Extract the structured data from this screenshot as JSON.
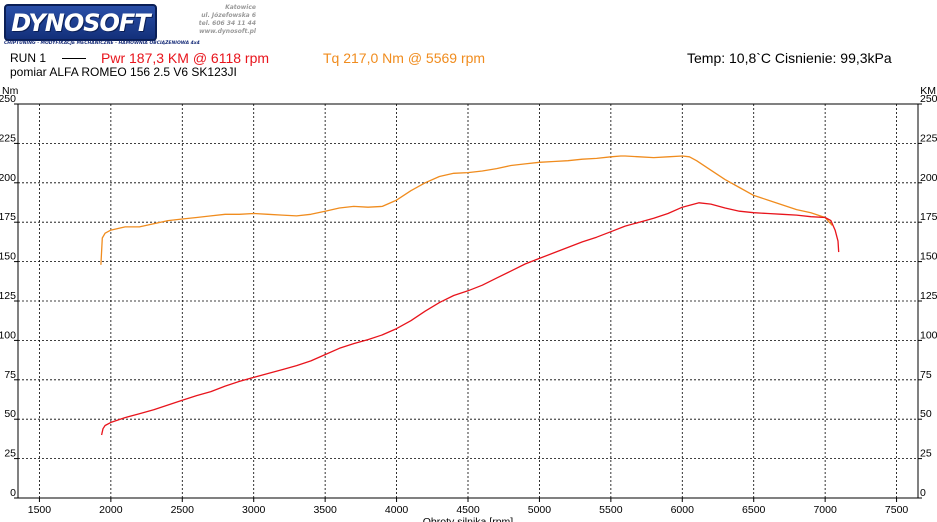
{
  "header": {
    "logo_text": "DYNOSOFT",
    "tagline": "CHIPTUNING · MODYFIKACJE MECHANICZNE · HAMOWNIA OBCIĄŻENIOWA 4x4",
    "address": [
      "Katowice",
      "ul. Józefowska 6",
      "tel. 606 34 11 44",
      "www.dynosoft.pl"
    ],
    "run_label": "RUN 1",
    "pwr_text": "Pwr  187,3 KM @ 6118 rpm",
    "tq_text": "Tq 217,0 Nm @ 5569 rpm",
    "conditions_text": "Temp: 10,8`C    Cisnienie: 99,3kPa",
    "subtitle": "pomiar ALFA ROMEO 156 2.5 V6 SK123JI"
  },
  "colors": {
    "power": "#e8141c",
    "torque": "#f08c1e",
    "grid": "#000000"
  },
  "chart_data": {
    "type": "line",
    "xlabel": "Obroty silnika [rpm]",
    "ylabel_left": "Nm",
    "ylabel_right": "KM",
    "xlim": [
      1350,
      7650
    ],
    "ylim": [
      0,
      250
    ],
    "x_ticks": [
      1500,
      2000,
      2500,
      3000,
      3500,
      4000,
      4500,
      5000,
      5500,
      6000,
      6500,
      7000,
      7500
    ],
    "y_ticks": [
      0,
      25,
      50,
      75,
      100,
      125,
      150,
      175,
      200,
      225,
      250
    ],
    "grid": true,
    "series": [
      {
        "name": "Tq",
        "unit": "Nm",
        "color": "#f08c1e",
        "x": [
          1930,
          1940,
          1960,
          2000,
          2100,
          2200,
          2300,
          2400,
          2500,
          2600,
          2700,
          2800,
          2900,
          3000,
          3100,
          3200,
          3300,
          3400,
          3500,
          3600,
          3700,
          3800,
          3900,
          4000,
          4100,
          4200,
          4300,
          4400,
          4500,
          4600,
          4700,
          4800,
          4900,
          5000,
          5100,
          5200,
          5300,
          5400,
          5500,
          5569,
          5600,
          5700,
          5800,
          5900,
          6000,
          6050,
          6100,
          6200,
          6300,
          6400,
          6500,
          6600,
          6700,
          6800,
          6900,
          7000,
          7050
        ],
        "values": [
          148,
          165,
          168,
          170,
          172,
          172,
          174,
          176,
          177,
          178,
          179,
          180,
          180,
          180.5,
          180,
          179.5,
          179,
          180,
          182,
          184,
          185,
          184.5,
          185,
          189,
          195,
          200,
          204,
          206,
          206.5,
          207.5,
          209,
          211,
          212,
          213,
          213.5,
          214,
          215,
          215.5,
          216.5,
          217,
          217,
          216.5,
          216,
          216.5,
          217,
          216.5,
          214,
          208,
          202,
          197,
          192,
          189,
          186,
          183,
          181,
          178,
          173
        ]
      },
      {
        "name": "Pwr",
        "unit": "KM",
        "color": "#e8141c",
        "x": [
          1935,
          1945,
          1960,
          2000,
          2100,
          2200,
          2300,
          2400,
          2500,
          2600,
          2700,
          2800,
          2900,
          3000,
          3100,
          3200,
          3300,
          3400,
          3500,
          3600,
          3700,
          3800,
          3900,
          4000,
          4100,
          4200,
          4300,
          4400,
          4500,
          4600,
          4700,
          4800,
          4900,
          5000,
          5100,
          5200,
          5300,
          5400,
          5500,
          5600,
          5700,
          5800,
          5900,
          6000,
          6118,
          6200,
          6300,
          6400,
          6500,
          6600,
          6700,
          6800,
          6900,
          7000,
          7040,
          7070,
          7090,
          7095
        ],
        "values": [
          40,
          44,
          46,
          48,
          51,
          53.5,
          56,
          59,
          62,
          65,
          67.5,
          71,
          74,
          76.5,
          79,
          81.5,
          84,
          87,
          91,
          95,
          98,
          100.5,
          103.5,
          107.5,
          112.5,
          118.5,
          124,
          128.5,
          131.5,
          135,
          139.5,
          144,
          148.5,
          152,
          155.5,
          159,
          162.5,
          165.5,
          169,
          172.5,
          175,
          177.5,
          180.5,
          184.5,
          187.3,
          186.5,
          184,
          182,
          181,
          180.5,
          180,
          179.5,
          178.5,
          178,
          176,
          170,
          163,
          156
        ]
      }
    ]
  }
}
